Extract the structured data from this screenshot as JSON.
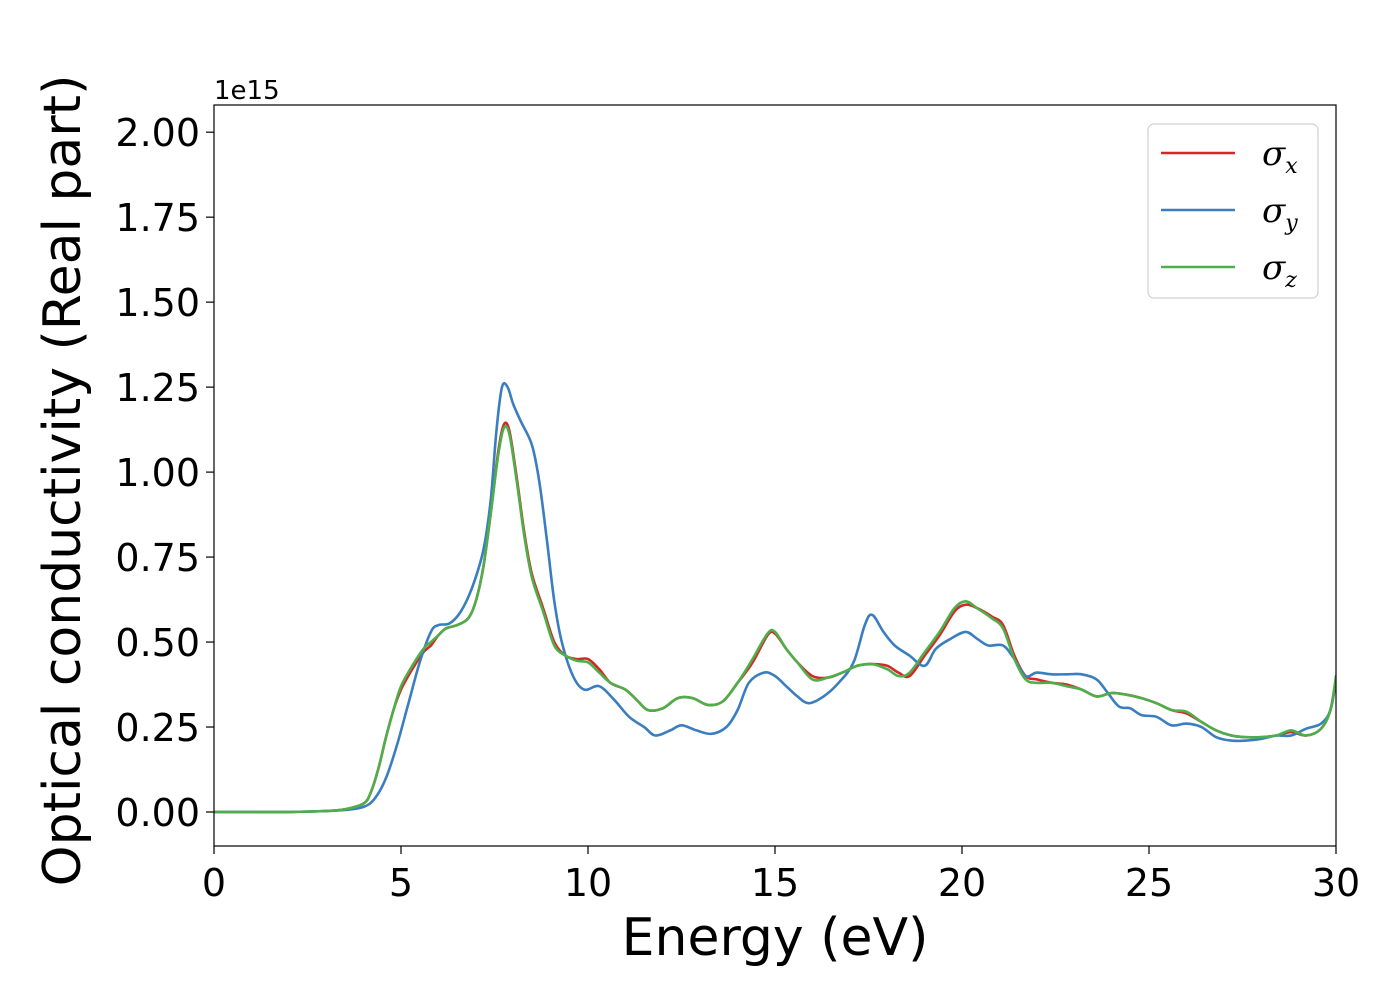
{
  "chart_data": {
    "type": "line",
    "xlabel": "Energy (eV)",
    "ylabel": "Optical conductivity (Real part)",
    "y_offset_label": "1e15",
    "y_scale_factor": 1000000000000000.0,
    "xlim": [
      0,
      30
    ],
    "ylim": [
      -0.1,
      2.08
    ],
    "xticks": [
      0,
      5,
      10,
      15,
      20,
      25,
      30
    ],
    "xtick_labels": [
      "0",
      "5",
      "10",
      "15",
      "20",
      "25",
      "30"
    ],
    "yticks": [
      0.0,
      0.25,
      0.5,
      0.75,
      1.0,
      1.25,
      1.5,
      1.75,
      2.0
    ],
    "ytick_labels": [
      "0.00",
      "0.25",
      "0.50",
      "0.75",
      "1.00",
      "1.25",
      "1.50",
      "1.75",
      "2.00"
    ],
    "grid": false,
    "legend_position": "top-right",
    "series": [
      {
        "name": "σx",
        "symbol": "σ",
        "subscript": "x",
        "color": "#d62728",
        "points": [
          [
            0,
            0
          ],
          [
            1,
            0
          ],
          [
            2,
            0
          ],
          [
            3,
            0.003
          ],
          [
            3.5,
            0.008
          ],
          [
            4,
            0.025
          ],
          [
            4.2,
            0.06
          ],
          [
            4.4,
            0.13
          ],
          [
            4.6,
            0.22
          ],
          [
            4.8,
            0.3
          ],
          [
            5,
            0.36
          ],
          [
            5.3,
            0.42
          ],
          [
            5.6,
            0.47
          ],
          [
            5.8,
            0.49
          ],
          [
            6,
            0.52
          ],
          [
            6.2,
            0.54
          ],
          [
            6.5,
            0.55
          ],
          [
            6.8,
            0.57
          ],
          [
            7,
            0.62
          ],
          [
            7.2,
            0.72
          ],
          [
            7.4,
            0.88
          ],
          [
            7.6,
            1.06
          ],
          [
            7.75,
            1.14
          ],
          [
            7.9,
            1.12
          ],
          [
            8.1,
            0.98
          ],
          [
            8.3,
            0.82
          ],
          [
            8.5,
            0.7
          ],
          [
            8.8,
            0.6
          ],
          [
            9.1,
            0.5
          ],
          [
            9.4,
            0.46
          ],
          [
            9.7,
            0.45
          ],
          [
            10,
            0.45
          ],
          [
            10.3,
            0.42
          ],
          [
            10.6,
            0.38
          ],
          [
            11,
            0.36
          ],
          [
            11.3,
            0.33
          ],
          [
            11.6,
            0.3
          ],
          [
            12,
            0.305
          ],
          [
            12.4,
            0.335
          ],
          [
            12.8,
            0.335
          ],
          [
            13.2,
            0.315
          ],
          [
            13.6,
            0.325
          ],
          [
            14,
            0.38
          ],
          [
            14.4,
            0.44
          ],
          [
            14.8,
            0.52
          ],
          [
            15,
            0.525
          ],
          [
            15.3,
            0.48
          ],
          [
            15.6,
            0.44
          ],
          [
            16,
            0.4
          ],
          [
            16.4,
            0.395
          ],
          [
            16.8,
            0.41
          ],
          [
            17.2,
            0.43
          ],
          [
            17.6,
            0.435
          ],
          [
            18,
            0.43
          ],
          [
            18.3,
            0.41
          ],
          [
            18.6,
            0.4
          ],
          [
            19,
            0.46
          ],
          [
            19.4,
            0.52
          ],
          [
            19.8,
            0.59
          ],
          [
            20.1,
            0.61
          ],
          [
            20.4,
            0.6
          ],
          [
            20.8,
            0.575
          ],
          [
            21.1,
            0.55
          ],
          [
            21.4,
            0.46
          ],
          [
            21.7,
            0.4
          ],
          [
            22,
            0.39
          ],
          [
            22.4,
            0.38
          ],
          [
            22.8,
            0.375
          ],
          [
            23.2,
            0.36
          ],
          [
            23.6,
            0.34
          ],
          [
            24,
            0.35
          ],
          [
            24.4,
            0.345
          ],
          [
            24.8,
            0.335
          ],
          [
            25.2,
            0.32
          ],
          [
            25.6,
            0.3
          ],
          [
            26,
            0.29
          ],
          [
            26.4,
            0.265
          ],
          [
            26.8,
            0.24
          ],
          [
            27.2,
            0.225
          ],
          [
            27.6,
            0.22
          ],
          [
            28,
            0.22
          ],
          [
            28.4,
            0.225
          ],
          [
            28.8,
            0.235
          ],
          [
            29.2,
            0.225
          ],
          [
            29.6,
            0.245
          ],
          [
            29.85,
            0.3
          ],
          [
            30,
            0.39
          ]
        ]
      },
      {
        "name": "σy",
        "symbol": "σ",
        "subscript": "y",
        "color": "#3a7ebf",
        "points": [
          [
            0,
            0
          ],
          [
            1,
            0
          ],
          [
            2,
            0
          ],
          [
            3,
            0.003
          ],
          [
            3.5,
            0.006
          ],
          [
            4,
            0.015
          ],
          [
            4.3,
            0.04
          ],
          [
            4.6,
            0.1
          ],
          [
            4.9,
            0.2
          ],
          [
            5.2,
            0.32
          ],
          [
            5.5,
            0.44
          ],
          [
            5.8,
            0.53
          ],
          [
            6,
            0.55
          ],
          [
            6.3,
            0.555
          ],
          [
            6.6,
            0.59
          ],
          [
            6.9,
            0.66
          ],
          [
            7.2,
            0.77
          ],
          [
            7.4,
            0.92
          ],
          [
            7.55,
            1.12
          ],
          [
            7.7,
            1.25
          ],
          [
            7.85,
            1.25
          ],
          [
            8,
            1.2
          ],
          [
            8.2,
            1.15
          ],
          [
            8.5,
            1.08
          ],
          [
            8.7,
            0.97
          ],
          [
            8.9,
            0.8
          ],
          [
            9.1,
            0.62
          ],
          [
            9.3,
            0.5
          ],
          [
            9.6,
            0.4
          ],
          [
            9.9,
            0.36
          ],
          [
            10.3,
            0.37
          ],
          [
            10.7,
            0.33
          ],
          [
            11.1,
            0.28
          ],
          [
            11.5,
            0.25
          ],
          [
            11.8,
            0.225
          ],
          [
            12.2,
            0.24
          ],
          [
            12.5,
            0.255
          ],
          [
            12.9,
            0.24
          ],
          [
            13.3,
            0.23
          ],
          [
            13.7,
            0.25
          ],
          [
            14,
            0.3
          ],
          [
            14.3,
            0.38
          ],
          [
            14.7,
            0.41
          ],
          [
            15,
            0.4
          ],
          [
            15.3,
            0.37
          ],
          [
            15.6,
            0.34
          ],
          [
            15.9,
            0.32
          ],
          [
            16.3,
            0.34
          ],
          [
            16.7,
            0.38
          ],
          [
            17.1,
            0.44
          ],
          [
            17.4,
            0.55
          ],
          [
            17.6,
            0.58
          ],
          [
            17.9,
            0.53
          ],
          [
            18.2,
            0.49
          ],
          [
            18.6,
            0.46
          ],
          [
            19,
            0.43
          ],
          [
            19.3,
            0.48
          ],
          [
            19.7,
            0.51
          ],
          [
            20.1,
            0.53
          ],
          [
            20.4,
            0.51
          ],
          [
            20.7,
            0.49
          ],
          [
            21.1,
            0.49
          ],
          [
            21.4,
            0.45
          ],
          [
            21.7,
            0.4
          ],
          [
            22,
            0.41
          ],
          [
            22.4,
            0.405
          ],
          [
            22.8,
            0.405
          ],
          [
            23.2,
            0.405
          ],
          [
            23.6,
            0.39
          ],
          [
            23.9,
            0.35
          ],
          [
            24.2,
            0.31
          ],
          [
            24.5,
            0.305
          ],
          [
            24.8,
            0.285
          ],
          [
            25.2,
            0.28
          ],
          [
            25.6,
            0.255
          ],
          [
            26,
            0.26
          ],
          [
            26.4,
            0.25
          ],
          [
            26.8,
            0.22
          ],
          [
            27.2,
            0.21
          ],
          [
            27.6,
            0.21
          ],
          [
            28,
            0.215
          ],
          [
            28.4,
            0.225
          ],
          [
            28.8,
            0.225
          ],
          [
            29.2,
            0.245
          ],
          [
            29.6,
            0.26
          ],
          [
            29.85,
            0.3
          ],
          [
            30,
            0.39
          ]
        ]
      },
      {
        "name": "σz",
        "symbol": "σ",
        "subscript": "z",
        "color": "#4daf4a",
        "points": [
          [
            0,
            0
          ],
          [
            1,
            0
          ],
          [
            2,
            0
          ],
          [
            3,
            0.003
          ],
          [
            3.5,
            0.008
          ],
          [
            4,
            0.025
          ],
          [
            4.2,
            0.06
          ],
          [
            4.4,
            0.13
          ],
          [
            4.6,
            0.22
          ],
          [
            4.8,
            0.3
          ],
          [
            5,
            0.37
          ],
          [
            5.3,
            0.43
          ],
          [
            5.6,
            0.48
          ],
          [
            5.8,
            0.5
          ],
          [
            6,
            0.52
          ],
          [
            6.2,
            0.54
          ],
          [
            6.5,
            0.55
          ],
          [
            6.8,
            0.57
          ],
          [
            7,
            0.62
          ],
          [
            7.2,
            0.72
          ],
          [
            7.4,
            0.88
          ],
          [
            7.6,
            1.05
          ],
          [
            7.75,
            1.13
          ],
          [
            7.9,
            1.11
          ],
          [
            8.1,
            0.97
          ],
          [
            8.3,
            0.81
          ],
          [
            8.5,
            0.69
          ],
          [
            8.8,
            0.59
          ],
          [
            9.1,
            0.49
          ],
          [
            9.4,
            0.46
          ],
          [
            9.7,
            0.445
          ],
          [
            10,
            0.44
          ],
          [
            10.3,
            0.41
          ],
          [
            10.6,
            0.38
          ],
          [
            11,
            0.36
          ],
          [
            11.3,
            0.33
          ],
          [
            11.6,
            0.3
          ],
          [
            12,
            0.305
          ],
          [
            12.4,
            0.335
          ],
          [
            12.8,
            0.335
          ],
          [
            13.2,
            0.315
          ],
          [
            13.6,
            0.325
          ],
          [
            14,
            0.38
          ],
          [
            14.4,
            0.45
          ],
          [
            14.8,
            0.525
          ],
          [
            15,
            0.53
          ],
          [
            15.3,
            0.48
          ],
          [
            15.6,
            0.44
          ],
          [
            16,
            0.39
          ],
          [
            16.4,
            0.395
          ],
          [
            16.8,
            0.41
          ],
          [
            17.2,
            0.43
          ],
          [
            17.6,
            0.435
          ],
          [
            18,
            0.42
          ],
          [
            18.3,
            0.4
          ],
          [
            18.6,
            0.41
          ],
          [
            19,
            0.47
          ],
          [
            19.4,
            0.53
          ],
          [
            19.8,
            0.6
          ],
          [
            20.1,
            0.62
          ],
          [
            20.4,
            0.6
          ],
          [
            20.8,
            0.57
          ],
          [
            21.1,
            0.54
          ],
          [
            21.4,
            0.45
          ],
          [
            21.7,
            0.39
          ],
          [
            22,
            0.38
          ],
          [
            22.4,
            0.38
          ],
          [
            22.8,
            0.37
          ],
          [
            23.2,
            0.36
          ],
          [
            23.6,
            0.34
          ],
          [
            24,
            0.35
          ],
          [
            24.4,
            0.345
          ],
          [
            24.8,
            0.335
          ],
          [
            25.2,
            0.32
          ],
          [
            25.6,
            0.3
          ],
          [
            26,
            0.295
          ],
          [
            26.4,
            0.265
          ],
          [
            26.8,
            0.24
          ],
          [
            27.2,
            0.225
          ],
          [
            27.6,
            0.22
          ],
          [
            28,
            0.22
          ],
          [
            28.4,
            0.225
          ],
          [
            28.8,
            0.24
          ],
          [
            29.2,
            0.225
          ],
          [
            29.6,
            0.245
          ],
          [
            29.85,
            0.3
          ],
          [
            30,
            0.4
          ]
        ]
      }
    ]
  }
}
